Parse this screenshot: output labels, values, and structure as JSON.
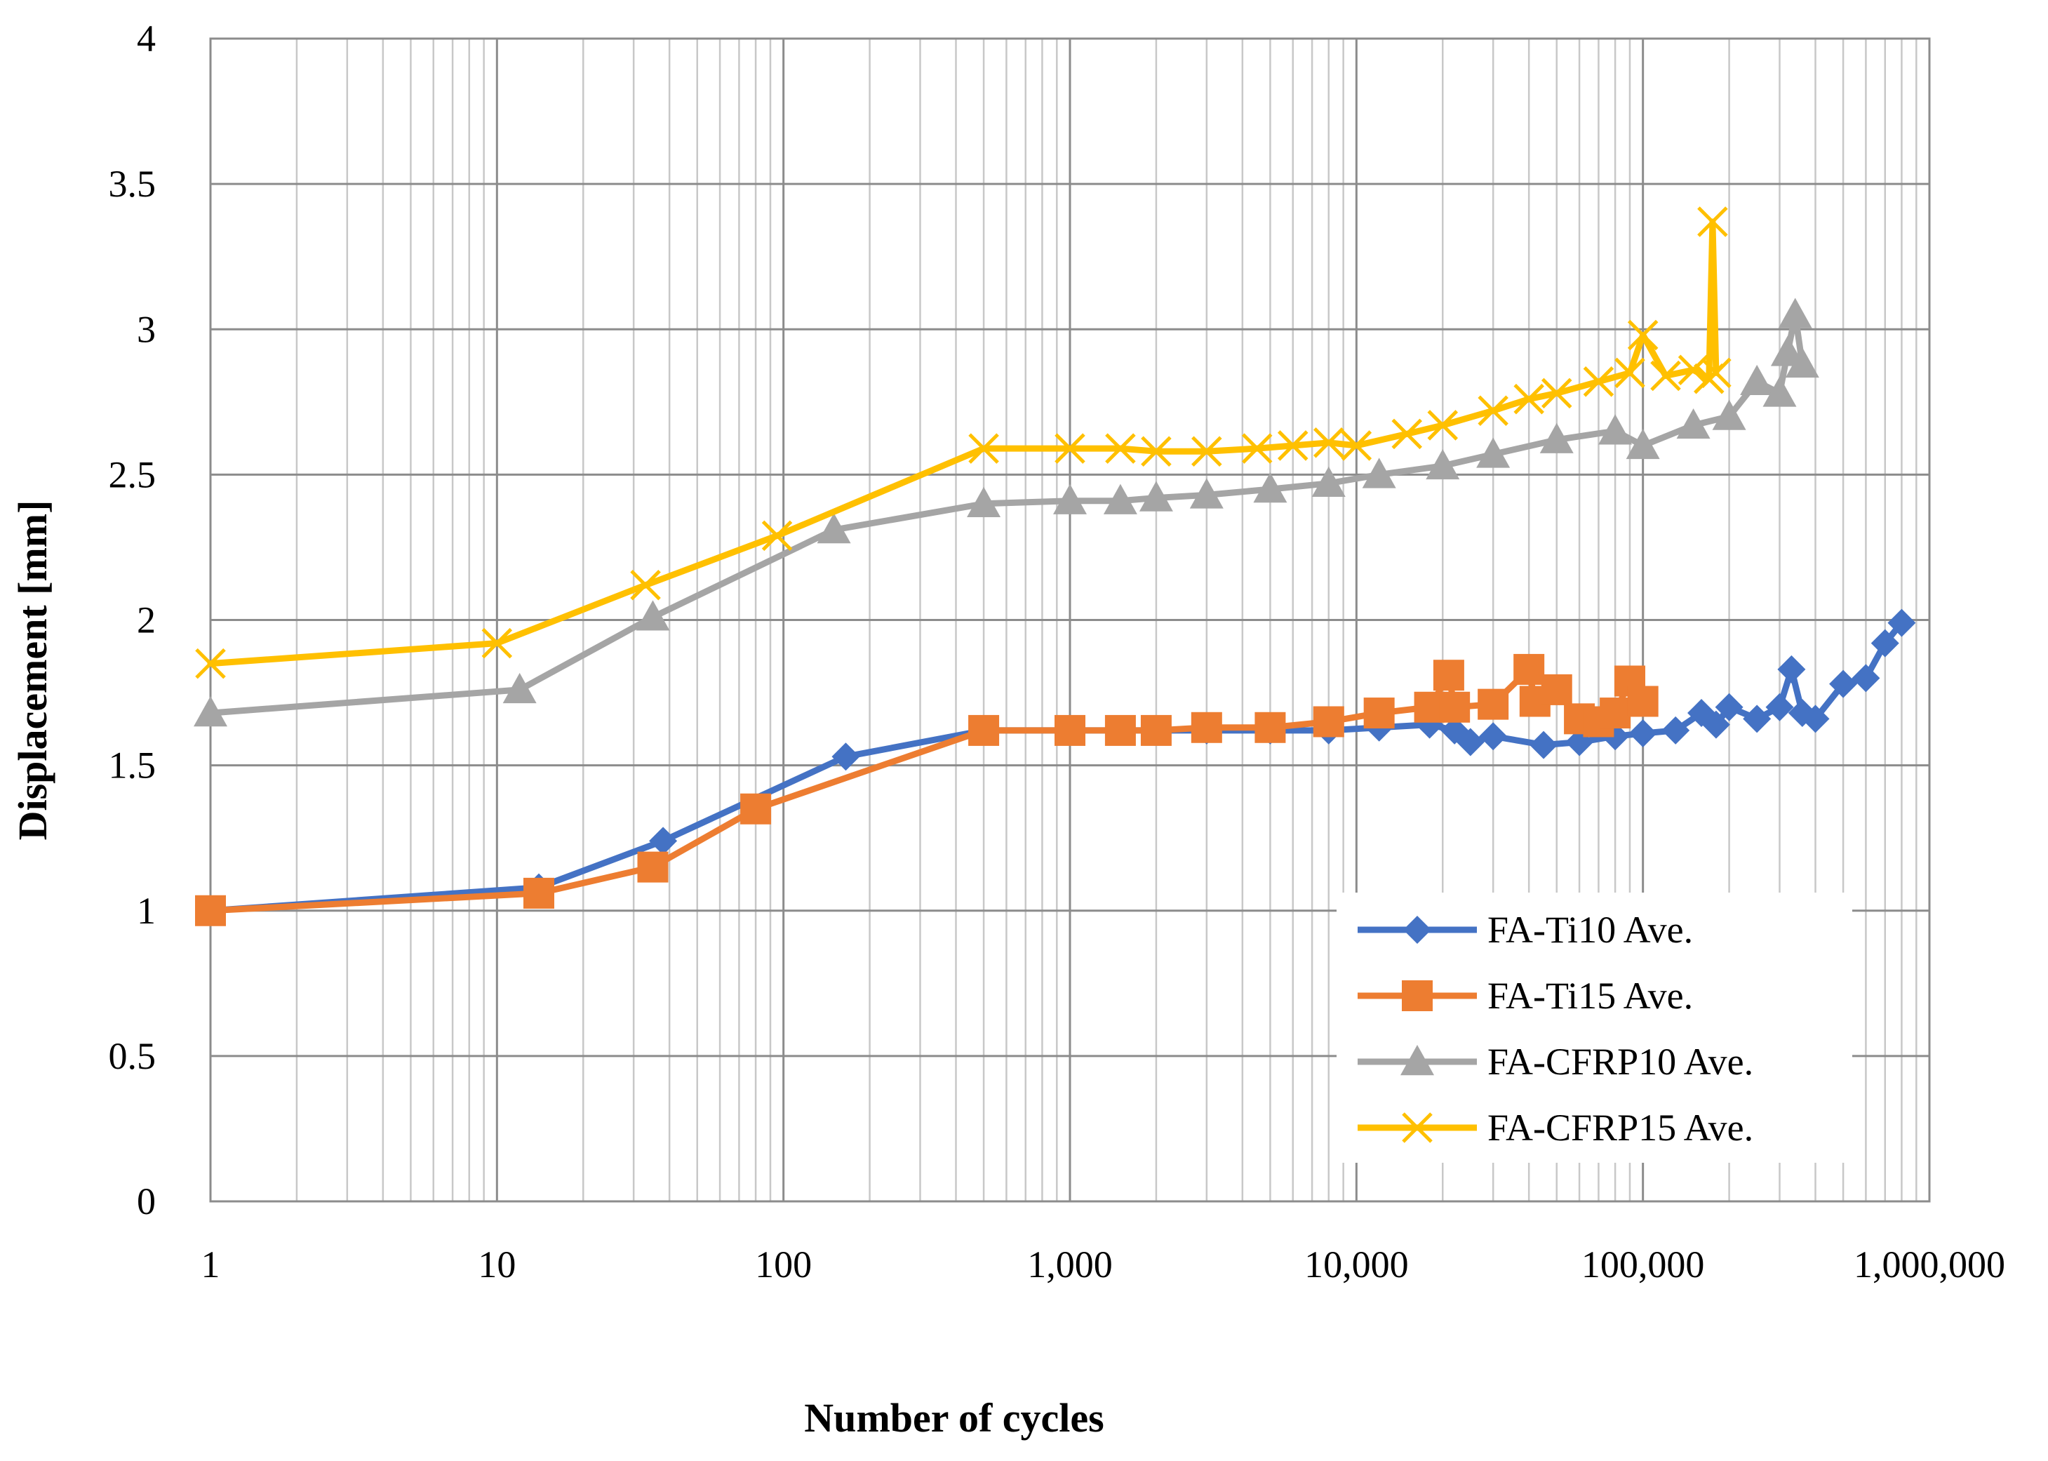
{
  "chart_data": {
    "type": "line",
    "title": "",
    "xlabel": "Number of cycles",
    "ylabel": "Displacement [mm]",
    "x_scale": "log",
    "xlim": [
      1,
      1000000
    ],
    "ylim": [
      0,
      4
    ],
    "x_ticks": [
      1,
      10,
      100,
      1000,
      10000,
      100000,
      1000000
    ],
    "x_tick_labels": [
      "1",
      "10",
      "100",
      "1,000",
      "10,000",
      "100,000",
      "1,000,000"
    ],
    "y_ticks": [
      0,
      0.5,
      1,
      1.5,
      2,
      2.5,
      3,
      3.5,
      4
    ],
    "y_tick_labels": [
      "0",
      "0.5",
      "1",
      "1.5",
      "2",
      "2.5",
      "3",
      "3.5",
      "4"
    ],
    "grid": true,
    "legend_position": "bottom-right",
    "series": [
      {
        "name": "FA-Ti10 Ave.",
        "color": "#4472C4",
        "marker": "diamond",
        "x": [
          1,
          14,
          38,
          165,
          500,
          1000,
          1500,
          2000,
          3000,
          5000,
          8000,
          12000,
          18000,
          22000,
          25000,
          30000,
          45000,
          60000,
          80000,
          100000,
          130000,
          160000,
          180000,
          200000,
          250000,
          300000,
          330000,
          360000,
          400000,
          500000,
          600000,
          700000,
          800000
        ],
        "y": [
          1.0,
          1.08,
          1.24,
          1.53,
          1.62,
          1.62,
          1.62,
          1.62,
          1.62,
          1.62,
          1.62,
          1.63,
          1.64,
          1.62,
          1.58,
          1.6,
          1.57,
          1.58,
          1.6,
          1.61,
          1.62,
          1.68,
          1.64,
          1.7,
          1.66,
          1.7,
          1.83,
          1.68,
          1.66,
          1.78,
          1.8,
          1.92,
          1.99
        ]
      },
      {
        "name": "FA-Ti15 Ave.",
        "color": "#ED7D31",
        "marker": "square",
        "x": [
          1,
          14,
          35,
          80,
          500,
          1000,
          1500,
          2000,
          3000,
          5000,
          8000,
          12000,
          18000,
          21000,
          22000,
          30000,
          40000,
          42000,
          50000,
          60000,
          70000,
          80000,
          90000,
          100000
        ],
        "y": [
          1.0,
          1.06,
          1.15,
          1.35,
          1.62,
          1.62,
          1.62,
          1.62,
          1.63,
          1.63,
          1.65,
          1.68,
          1.7,
          1.81,
          1.7,
          1.71,
          1.83,
          1.72,
          1.76,
          1.66,
          1.65,
          1.68,
          1.79,
          1.72
        ]
      },
      {
        "name": "FA-CFRP10 Ave.",
        "color": "#A5A5A5",
        "marker": "triangle",
        "x": [
          1,
          12,
          35,
          150,
          500,
          1000,
          1500,
          2000,
          3000,
          5000,
          8000,
          12000,
          20000,
          30000,
          50000,
          80000,
          100000,
          150000,
          200000,
          250000,
          300000,
          320000,
          340000,
          360000
        ],
        "y": [
          1.68,
          1.76,
          2.01,
          2.31,
          2.4,
          2.41,
          2.41,
          2.42,
          2.43,
          2.45,
          2.47,
          2.5,
          2.53,
          2.57,
          2.62,
          2.65,
          2.6,
          2.67,
          2.7,
          2.82,
          2.78,
          2.92,
          3.05,
          2.88
        ]
      },
      {
        "name": "FA-CFRP15 Ave.",
        "color": "#FFC000",
        "marker": "x",
        "x": [
          1,
          10,
          33,
          95,
          500,
          1000,
          1500,
          2000,
          3000,
          4500,
          6000,
          8000,
          10000,
          15000,
          20000,
          30000,
          40000,
          50000,
          70000,
          90000,
          100000,
          120000,
          150000,
          170000,
          175000,
          180000
        ],
        "y": [
          1.85,
          1.92,
          2.12,
          2.29,
          2.59,
          2.59,
          2.59,
          2.58,
          2.58,
          2.59,
          2.6,
          2.61,
          2.6,
          2.64,
          2.67,
          2.72,
          2.76,
          2.78,
          2.82,
          2.85,
          2.98,
          2.84,
          2.86,
          2.83,
          3.37,
          2.85
        ]
      }
    ]
  }
}
